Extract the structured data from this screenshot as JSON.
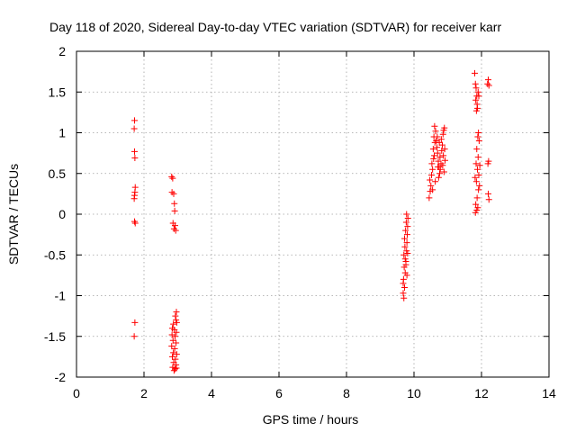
{
  "chart_data": {
    "type": "scatter",
    "title": "Day 118 of 2020, Sidereal Day-to-day VTEC variation (SDTVAR) for receiver karr",
    "xlabel": "GPS time / hours",
    "ylabel": "SDTVAR / TECUs",
    "xlim": [
      0,
      14
    ],
    "ylim": [
      -2,
      2
    ],
    "xticks": [
      0,
      2,
      4,
      6,
      8,
      10,
      12,
      14
    ],
    "yticks": [
      -2,
      -1.5,
      -1,
      -0.5,
      0,
      0.5,
      1,
      1.5,
      2
    ],
    "xtick_labels": [
      "0",
      "2",
      "4",
      "6",
      "8",
      "10",
      "12",
      "14"
    ],
    "ytick_labels": [
      "-2",
      "-1.5",
      "-1",
      "-0.5",
      "0",
      "0.5",
      "1",
      "1.5",
      "2"
    ],
    "grid": true,
    "marker": "+",
    "color": "#ff0000",
    "series": [
      {
        "name": "karr",
        "points": [
          [
            1.72,
            1.15
          ],
          [
            1.71,
            1.05
          ],
          [
            1.72,
            0.77
          ],
          [
            1.73,
            0.69
          ],
          [
            1.74,
            0.33
          ],
          [
            1.73,
            0.27
          ],
          [
            1.72,
            0.23
          ],
          [
            1.71,
            0.19
          ],
          [
            1.72,
            -0.09
          ],
          [
            1.74,
            -0.11
          ],
          [
            1.73,
            -1.33
          ],
          [
            1.71,
            -1.5
          ],
          [
            2.82,
            0.46
          ],
          [
            2.85,
            0.44
          ],
          [
            2.83,
            0.27
          ],
          [
            2.88,
            0.25
          ],
          [
            2.9,
            0.13
          ],
          [
            2.91,
            0.04
          ],
          [
            2.86,
            -0.11
          ],
          [
            2.92,
            -0.14
          ],
          [
            2.89,
            -0.18
          ],
          [
            2.94,
            -0.2
          ],
          [
            2.96,
            -1.2
          ],
          [
            2.93,
            -1.25
          ],
          [
            2.95,
            -1.3
          ],
          [
            2.87,
            -1.35
          ],
          [
            2.97,
            -1.33
          ],
          [
            2.84,
            -1.4
          ],
          [
            2.9,
            -1.42
          ],
          [
            2.96,
            -1.45
          ],
          [
            2.83,
            -1.48
          ],
          [
            2.92,
            -1.5
          ],
          [
            2.86,
            -1.55
          ],
          [
            2.95,
            -1.58
          ],
          [
            2.82,
            -1.62
          ],
          [
            2.91,
            -1.65
          ],
          [
            2.87,
            -1.7
          ],
          [
            2.97,
            -1.72
          ],
          [
            2.84,
            -1.75
          ],
          [
            2.93,
            -1.78
          ],
          [
            2.88,
            -1.82
          ],
          [
            2.95,
            -1.85
          ],
          [
            2.85,
            -1.88
          ],
          [
            2.92,
            -1.9
          ],
          [
            2.89,
            -1.92
          ],
          [
            2.96,
            -1.89
          ],
          [
            9.7,
            -1.03
          ],
          [
            9.68,
            -0.97
          ],
          [
            9.72,
            -0.9
          ],
          [
            9.69,
            -0.8
          ],
          [
            9.74,
            -0.72
          ],
          [
            9.71,
            -0.65
          ],
          [
            9.76,
            -0.58
          ],
          [
            9.7,
            -0.5
          ],
          [
            9.78,
            -0.45
          ],
          [
            9.73,
            -0.4
          ],
          [
            9.79,
            -0.35
          ],
          [
            9.72,
            -0.3
          ],
          [
            9.8,
            -0.25
          ],
          [
            9.75,
            -0.2
          ],
          [
            9.81,
            -0.15
          ],
          [
            9.77,
            -0.1
          ],
          [
            9.82,
            -0.05
          ],
          [
            9.78,
            0.0
          ],
          [
            9.76,
            -0.62
          ],
          [
            9.79,
            -0.75
          ],
          [
            9.74,
            -0.55
          ],
          [
            9.81,
            -0.48
          ],
          [
            9.68,
            -0.85
          ],
          [
            10.45,
            0.2
          ],
          [
            10.48,
            0.28
          ],
          [
            10.5,
            0.35
          ],
          [
            10.47,
            0.42
          ],
          [
            10.52,
            0.48
          ],
          [
            10.55,
            0.55
          ],
          [
            10.53,
            0.62
          ],
          [
            10.58,
            0.68
          ],
          [
            10.6,
            0.72
          ],
          [
            10.57,
            0.8
          ],
          [
            10.62,
            0.88
          ],
          [
            10.59,
            0.95
          ],
          [
            10.64,
            1.02
          ],
          [
            10.61,
            1.08
          ],
          [
            10.66,
            0.9
          ],
          [
            10.68,
            0.82
          ],
          [
            10.7,
            0.75
          ],
          [
            10.72,
            0.65
          ],
          [
            10.74,
            0.58
          ],
          [
            10.76,
            0.5
          ],
          [
            10.73,
            0.45
          ],
          [
            10.78,
            0.55
          ],
          [
            10.8,
            0.62
          ],
          [
            10.77,
            0.7
          ],
          [
            10.82,
            0.78
          ],
          [
            10.84,
            0.85
          ],
          [
            10.81,
            0.92
          ],
          [
            10.86,
            0.98
          ],
          [
            10.88,
            1.03
          ],
          [
            10.9,
            1.06
          ],
          [
            10.87,
            0.72
          ],
          [
            10.92,
            0.66
          ],
          [
            10.85,
            0.6
          ],
          [
            10.89,
            0.52
          ],
          [
            10.91,
            0.8
          ],
          [
            10.55,
            0.3
          ],
          [
            10.63,
            0.4
          ],
          [
            10.71,
            0.58
          ],
          [
            10.69,
            0.95
          ],
          [
            10.75,
            0.88
          ],
          [
            11.8,
            1.73
          ],
          [
            11.82,
            1.6
          ],
          [
            11.84,
            1.55
          ],
          [
            11.86,
            1.45
          ],
          [
            11.83,
            1.4
          ],
          [
            11.88,
            1.3
          ],
          [
            11.85,
            1.27
          ],
          [
            11.9,
            1.5
          ],
          [
            11.92,
            1.45
          ],
          [
            11.87,
            1.35
          ],
          [
            11.91,
            1.0
          ],
          [
            11.89,
            0.95
          ],
          [
            11.93,
            0.9
          ],
          [
            11.86,
            0.8
          ],
          [
            11.9,
            0.7
          ],
          [
            11.84,
            0.62
          ],
          [
            11.88,
            0.55
          ],
          [
            11.92,
            0.48
          ],
          [
            11.85,
            0.4
          ],
          [
            11.91,
            0.3
          ],
          [
            11.87,
            0.2
          ],
          [
            11.83,
            0.12
          ],
          [
            11.89,
            0.08
          ],
          [
            11.86,
            0.05
          ],
          [
            11.82,
            0.02
          ],
          [
            11.94,
            0.35
          ],
          [
            11.81,
            0.45
          ],
          [
            11.95,
            0.6
          ],
          [
            12.2,
            1.65
          ],
          [
            12.22,
            1.58
          ],
          [
            12.18,
            1.6
          ],
          [
            12.21,
            0.65
          ],
          [
            12.19,
            0.62
          ],
          [
            12.2,
            0.25
          ],
          [
            12.22,
            0.18
          ]
        ]
      }
    ]
  }
}
